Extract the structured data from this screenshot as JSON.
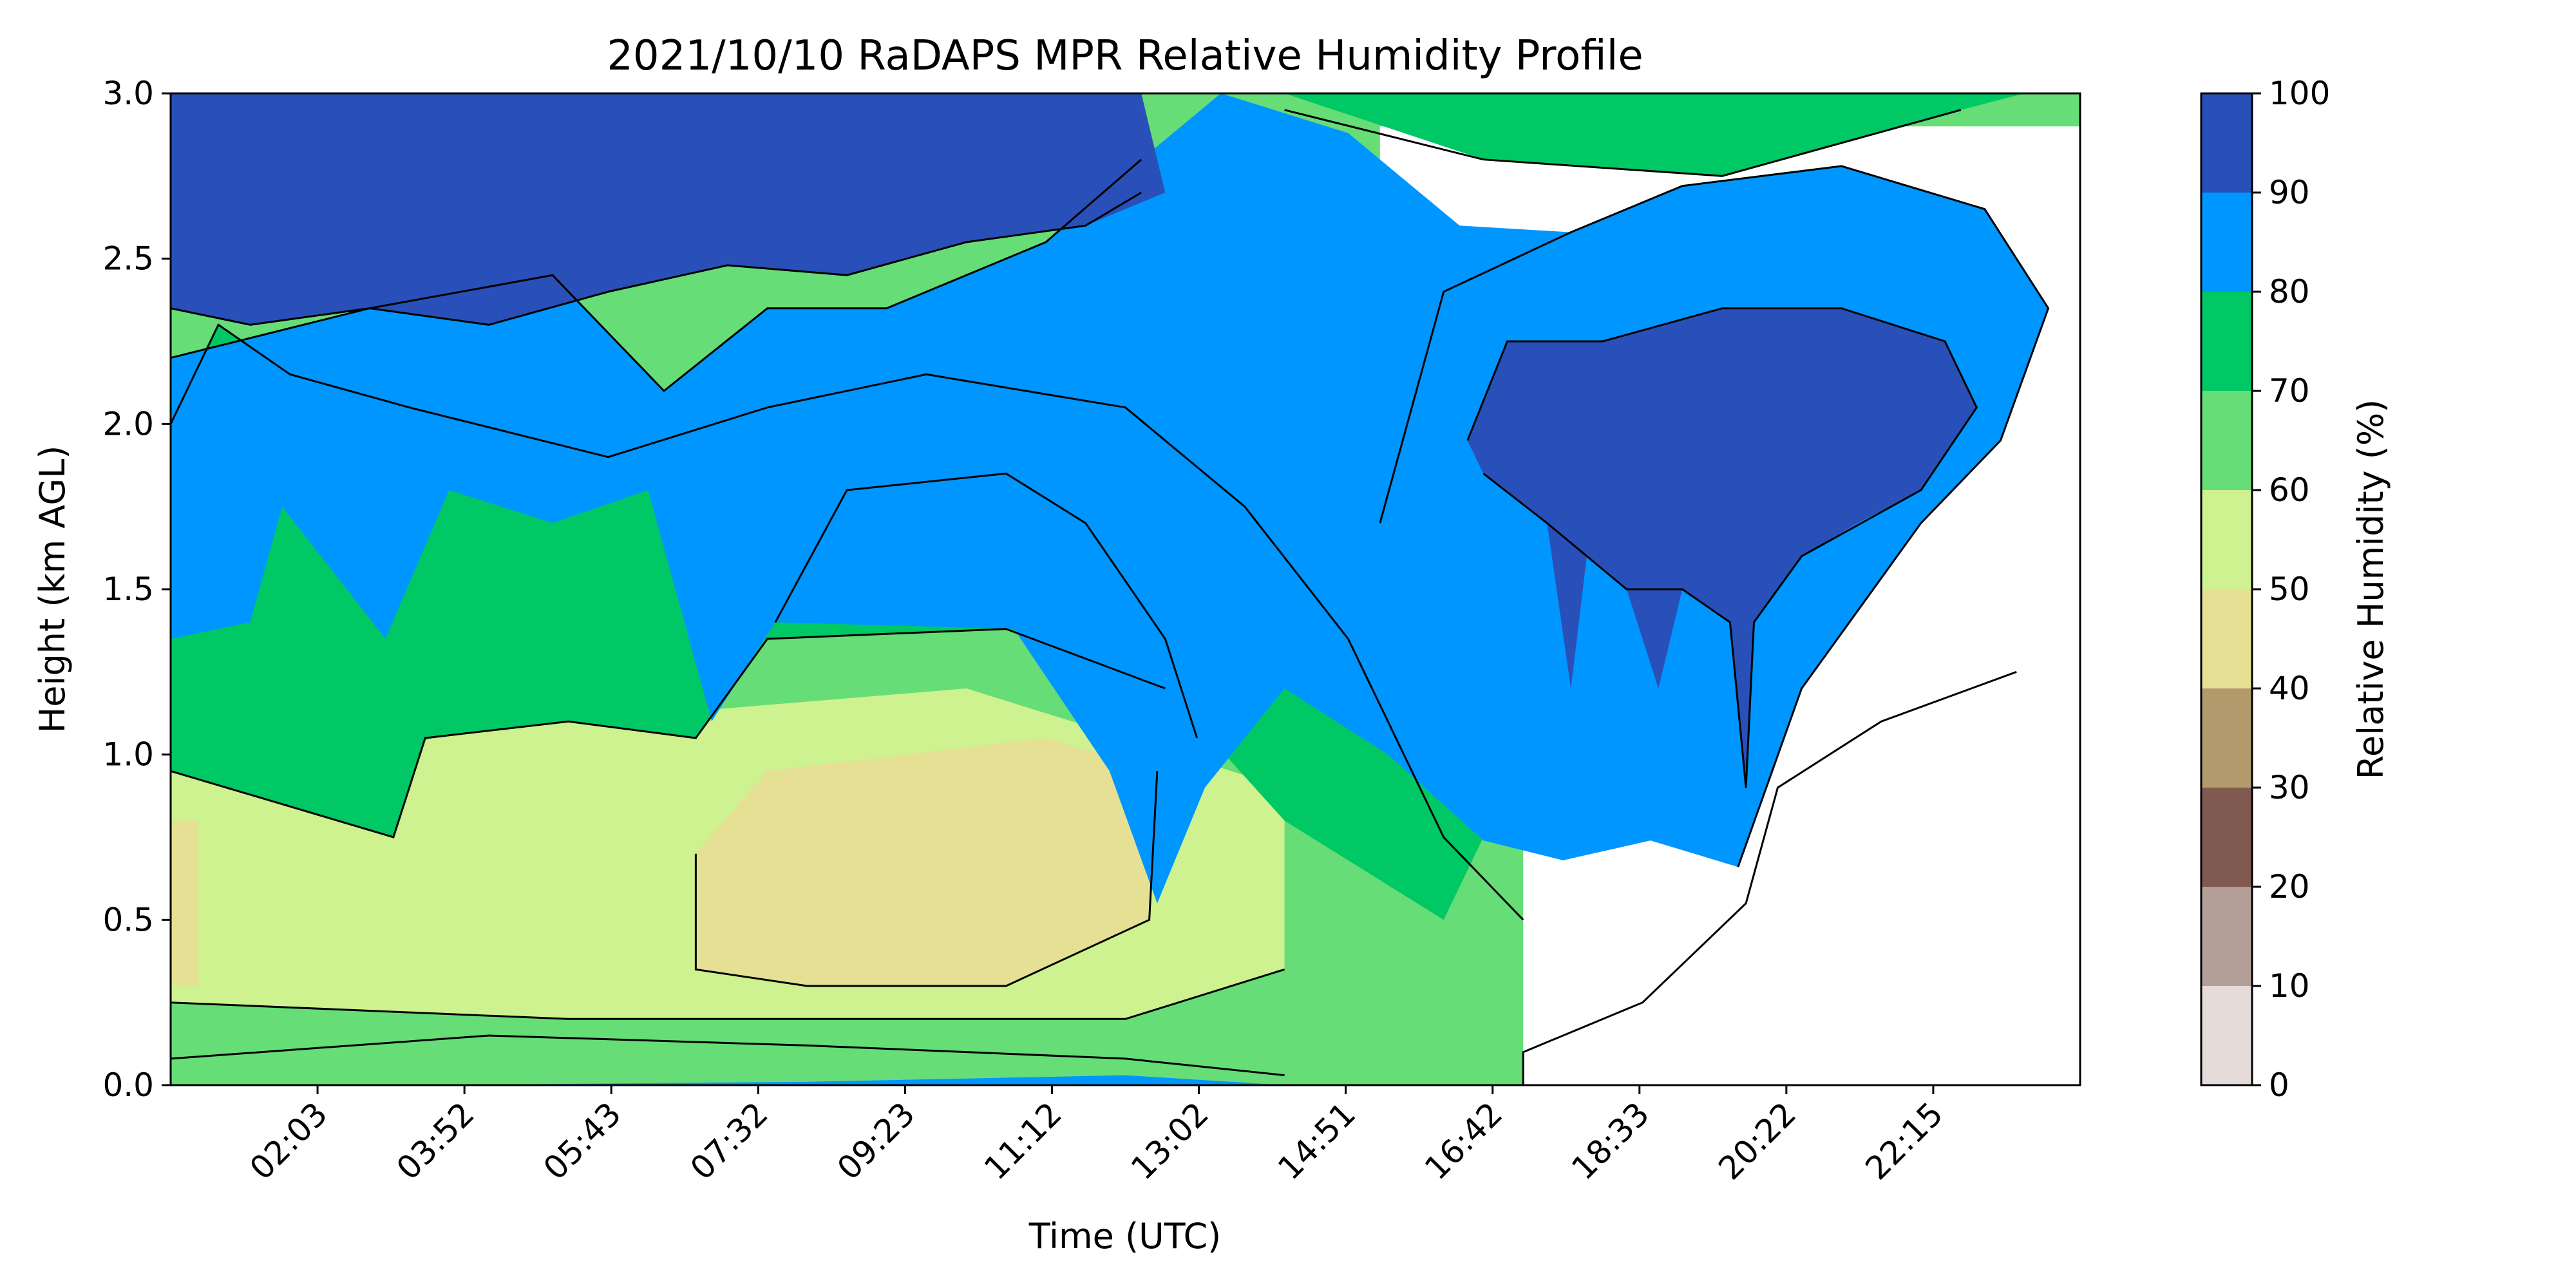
{
  "chart_data": {
    "type": "heatmap",
    "title": "2021/10/10 RaDAPS MPR Relative Humidity Profile",
    "xlabel": "Time (UTC)",
    "ylabel": "Height (km AGL)",
    "x_ticks": [
      "02:03",
      "03:52",
      "05:43",
      "07:32",
      "09:23",
      "11:12",
      "13:02",
      "14:51",
      "16:42",
      "18:33",
      "20:22",
      "22:15"
    ],
    "y_ticks": [
      "0.0",
      "0.5",
      "1.0",
      "1.5",
      "2.0",
      "2.5",
      "3.0"
    ],
    "ylim": [
      0,
      3
    ],
    "colorbar": {
      "label": "Relative Humidity (%)",
      "ticks": [
        "0",
        "10",
        "20",
        "30",
        "40",
        "50",
        "60",
        "70",
        "80",
        "90",
        "100"
      ],
      "levels": [
        {
          "range": [
            0,
            10
          ],
          "color": "#e5dcda"
        },
        {
          "range": [
            10,
            20
          ],
          "color": "#b39e98"
        },
        {
          "range": [
            20,
            30
          ],
          "color": "#805a50"
        },
        {
          "range": [
            30,
            40
          ],
          "color": "#b39a6d"
        },
        {
          "range": [
            40,
            50
          ],
          "color": "#e5e093"
        },
        {
          "range": [
            50,
            60
          ],
          "color": "#cdf28f"
        },
        {
          "range": [
            60,
            70
          ],
          "color": "#66dd77"
        },
        {
          "range": [
            70,
            80
          ],
          "color": "#00c864"
        },
        {
          "range": [
            80,
            90
          ],
          "color": "#0096ff"
        },
        {
          "range": [
            90,
            100
          ],
          "color": "#2850b8"
        }
      ]
    },
    "regions": [
      {
        "name": "green-dry-band",
        "color": "#66dd77",
        "points": [
          [
            0.0,
            0.0
          ],
          [
            24.0,
            0.0
          ],
          [
            24.0,
            3.0
          ],
          [
            0.0,
            3.0
          ]
        ]
      },
      {
        "name": "white-gap-upper",
        "color": "#ffffff",
        "points": [
          [
            15.2,
            2.9
          ],
          [
            24.0,
            2.9
          ],
          [
            24.0,
            0.0
          ],
          [
            17.0,
            0.0
          ],
          [
            17.0,
            1.0
          ],
          [
            15.2,
            1.7
          ]
        ]
      },
      {
        "name": "pale-midday",
        "color": "#cdf28f",
        "points": [
          [
            0.0,
            0.25
          ],
          [
            5.0,
            0.2
          ],
          [
            12.0,
            0.2
          ],
          [
            14.0,
            0.35
          ],
          [
            14.0,
            0.9
          ],
          [
            10.0,
            1.2
          ],
          [
            5.0,
            1.1
          ],
          [
            0.0,
            0.95
          ]
        ]
      },
      {
        "name": "tan-core",
        "color": "#e5e093",
        "points": [
          [
            6.6,
            0.35
          ],
          [
            8.0,
            0.3
          ],
          [
            10.5,
            0.3
          ],
          [
            12.3,
            0.5
          ],
          [
            12.4,
            0.95
          ],
          [
            11.0,
            1.05
          ],
          [
            7.5,
            0.95
          ],
          [
            6.6,
            0.7
          ]
        ]
      },
      {
        "name": "tan-left-edge",
        "color": "#e5e093",
        "points": [
          [
            0.0,
            0.3
          ],
          [
            0.35,
            0.3
          ],
          [
            0.35,
            0.8
          ],
          [
            0.0,
            0.8
          ]
        ]
      },
      {
        "name": "green-low-night",
        "color": "#00c864",
        "points": [
          [
            0.0,
            0.95
          ],
          [
            2.8,
            0.75
          ],
          [
            3.2,
            1.05
          ],
          [
            5.0,
            1.1
          ],
          [
            6.6,
            1.05
          ],
          [
            7.5,
            1.35
          ],
          [
            10.5,
            1.38
          ],
          [
            12.5,
            1.2
          ],
          [
            14.0,
            0.8
          ],
          [
            16.0,
            0.5
          ],
          [
            16.5,
            0.75
          ],
          [
            17.0,
            1.0
          ],
          [
            14.8,
            1.35
          ],
          [
            13.5,
            1.75
          ],
          [
            12.0,
            2.05
          ],
          [
            9.5,
            2.15
          ],
          [
            7.5,
            2.05
          ],
          [
            5.5,
            1.9
          ],
          [
            3.0,
            2.05
          ],
          [
            1.5,
            2.15
          ],
          [
            0.6,
            2.3
          ],
          [
            0.0,
            2.0
          ]
        ]
      },
      {
        "name": "blue-humid-layer",
        "color": "#0096ff",
        "points": [
          [
            0.0,
            1.35
          ],
          [
            1.0,
            1.4
          ],
          [
            1.4,
            1.75
          ],
          [
            2.7,
            1.35
          ],
          [
            3.5,
            1.8
          ],
          [
            4.8,
            1.7
          ],
          [
            6.0,
            1.8
          ],
          [
            6.8,
            1.1
          ],
          [
            7.6,
            1.4
          ],
          [
            10.6,
            1.38
          ],
          [
            11.8,
            0.95
          ],
          [
            12.4,
            0.55
          ],
          [
            13.0,
            0.9
          ],
          [
            14.0,
            1.2
          ],
          [
            15.3,
            1.0
          ],
          [
            16.5,
            0.74
          ],
          [
            17.5,
            0.68
          ],
          [
            18.6,
            0.74
          ],
          [
            19.7,
            0.66
          ],
          [
            20.5,
            1.2
          ],
          [
            22.0,
            1.7
          ],
          [
            23.0,
            1.95
          ],
          [
            23.6,
            2.35
          ],
          [
            22.8,
            2.65
          ],
          [
            21.0,
            2.78
          ],
          [
            19.0,
            2.72
          ],
          [
            17.6,
            2.58
          ],
          [
            16.2,
            2.6
          ],
          [
            14.8,
            2.88
          ],
          [
            13.2,
            3.0
          ],
          [
            12.2,
            2.8
          ],
          [
            11.0,
            2.55
          ],
          [
            9.0,
            2.35
          ],
          [
            7.5,
            2.35
          ],
          [
            6.2,
            2.1
          ],
          [
            4.8,
            2.45
          ],
          [
            2.5,
            2.35
          ],
          [
            0.0,
            2.2
          ]
        ]
      },
      {
        "name": "green-upper-evening",
        "color": "#00c864",
        "points": [
          [
            14.0,
            3.0
          ],
          [
            16.5,
            2.8
          ],
          [
            19.5,
            2.75
          ],
          [
            22.5,
            2.95
          ],
          [
            23.3,
            3.0
          ]
        ]
      },
      {
        "name": "navy-saturated-top",
        "color": "#2850b8",
        "points": [
          [
            0.0,
            3.0
          ],
          [
            12.2,
            3.0
          ],
          [
            12.5,
            2.7
          ],
          [
            11.5,
            2.6
          ],
          [
            10.0,
            2.55
          ],
          [
            8.5,
            2.45
          ],
          [
            7.0,
            2.48
          ],
          [
            5.5,
            2.4
          ],
          [
            4.0,
            2.3
          ],
          [
            2.5,
            2.35
          ],
          [
            1.0,
            2.3
          ],
          [
            0.0,
            2.35
          ]
        ]
      },
      {
        "name": "navy-evening-cloud",
        "color": "#2850b8",
        "points": [
          [
            16.3,
            1.95
          ],
          [
            16.8,
            2.25
          ],
          [
            18.0,
            2.25
          ],
          [
            19.5,
            2.35
          ],
          [
            21.0,
            2.35
          ],
          [
            22.3,
            2.25
          ],
          [
            22.7,
            2.05
          ],
          [
            22.0,
            1.8
          ],
          [
            21.2,
            1.7
          ],
          [
            20.5,
            1.6
          ],
          [
            19.9,
            1.4
          ],
          [
            19.8,
            0.9
          ],
          [
            19.6,
            1.4
          ],
          [
            19.0,
            1.5
          ],
          [
            18.7,
            1.2
          ],
          [
            18.3,
            1.5
          ],
          [
            17.8,
            1.6
          ],
          [
            17.6,
            1.2
          ],
          [
            17.3,
            1.7
          ],
          [
            16.5,
            1.85
          ]
        ]
      },
      {
        "name": "blue-surface-band",
        "color": "#0096ff",
        "points": [
          [
            3.0,
            0.0
          ],
          [
            8.0,
            0.01
          ],
          [
            12.0,
            0.03
          ],
          [
            14.0,
            0.0
          ]
        ]
      }
    ],
    "contours": [
      {
        "name": "rh-90-contour-top",
        "points": [
          [
            0.0,
            2.35
          ],
          [
            1.0,
            2.3
          ],
          [
            2.5,
            2.35
          ],
          [
            4.0,
            2.3
          ],
          [
            5.5,
            2.4
          ],
          [
            7.0,
            2.48
          ],
          [
            8.5,
            2.45
          ],
          [
            10.0,
            2.55
          ],
          [
            11.5,
            2.6
          ],
          [
            12.2,
            2.7
          ]
        ]
      },
      {
        "name": "rh-80-contour-upper",
        "points": [
          [
            0.0,
            2.2
          ],
          [
            2.5,
            2.35
          ],
          [
            4.8,
            2.45
          ],
          [
            6.2,
            2.1
          ],
          [
            7.5,
            2.35
          ],
          [
            9.0,
            2.35
          ],
          [
            11.0,
            2.55
          ],
          [
            12.2,
            2.8
          ]
        ]
      },
      {
        "name": "rh-70-contour-mid",
        "points": [
          [
            0.0,
            2.0
          ],
          [
            0.6,
            2.3
          ],
          [
            1.5,
            2.15
          ],
          [
            3.0,
            2.05
          ],
          [
            5.5,
            1.9
          ],
          [
            7.5,
            2.05
          ],
          [
            9.5,
            2.15
          ],
          [
            12.0,
            2.05
          ],
          [
            13.5,
            1.75
          ],
          [
            14.8,
            1.35
          ],
          [
            16.0,
            0.75
          ],
          [
            17.0,
            0.5
          ]
        ]
      },
      {
        "name": "rh-80-contour-core",
        "points": [
          [
            7.6,
            1.4
          ],
          [
            8.5,
            1.8
          ],
          [
            10.5,
            1.85
          ],
          [
            11.5,
            1.7
          ],
          [
            12.5,
            1.35
          ],
          [
            12.9,
            1.05
          ]
        ]
      },
      {
        "name": "rh-60-contour",
        "points": [
          [
            0.0,
            0.95
          ],
          [
            2.8,
            0.75
          ],
          [
            3.2,
            1.05
          ],
          [
            5.0,
            1.1
          ],
          [
            6.6,
            1.05
          ],
          [
            7.5,
            1.35
          ],
          [
            10.5,
            1.38
          ],
          [
            12.5,
            1.2
          ]
        ]
      },
      {
        "name": "rh-50-contour",
        "points": [
          [
            6.6,
            0.7
          ],
          [
            6.6,
            0.35
          ],
          [
            8.0,
            0.3
          ],
          [
            10.5,
            0.3
          ],
          [
            12.3,
            0.5
          ],
          [
            12.4,
            0.95
          ]
        ]
      },
      {
        "name": "rh-60-low-contour",
        "points": [
          [
            0.0,
            0.25
          ],
          [
            5.0,
            0.2
          ],
          [
            12.0,
            0.2
          ],
          [
            14.0,
            0.35
          ]
        ]
      },
      {
        "name": "rh-70-surface-contour",
        "points": [
          [
            0.0,
            0.08
          ],
          [
            4.0,
            0.15
          ],
          [
            8.0,
            0.12
          ],
          [
            12.0,
            0.08
          ],
          [
            14.0,
            0.03
          ]
        ]
      },
      {
        "name": "rh-90-evening-contour",
        "points": [
          [
            16.3,
            1.95
          ],
          [
            16.8,
            2.25
          ],
          [
            18.0,
            2.25
          ],
          [
            19.5,
            2.35
          ],
          [
            21.0,
            2.35
          ],
          [
            22.3,
            2.25
          ],
          [
            22.7,
            2.05
          ],
          [
            22.0,
            1.8
          ],
          [
            20.5,
            1.6
          ],
          [
            19.9,
            1.4
          ],
          [
            19.8,
            0.9
          ],
          [
            19.6,
            1.4
          ],
          [
            19.0,
            1.5
          ],
          [
            18.3,
            1.5
          ],
          [
            17.3,
            1.7
          ],
          [
            16.5,
            1.85
          ]
        ]
      },
      {
        "name": "rh-80-evening-contour",
        "points": [
          [
            15.2,
            1.7
          ],
          [
            16.0,
            2.4
          ],
          [
            17.6,
            2.58
          ],
          [
            19.0,
            2.72
          ],
          [
            21.0,
            2.78
          ],
          [
            22.8,
            2.65
          ],
          [
            23.6,
            2.35
          ],
          [
            23.0,
            1.95
          ],
          [
            22.0,
            1.7
          ],
          [
            20.5,
            1.2
          ],
          [
            19.7,
            0.66
          ]
        ]
      },
      {
        "name": "rh-60-evening-contour",
        "points": [
          [
            17.0,
            0.0
          ],
          [
            17.0,
            0.1
          ],
          [
            18.5,
            0.25
          ],
          [
            19.8,
            0.55
          ],
          [
            20.2,
            0.9
          ],
          [
            21.5,
            1.1
          ],
          [
            23.2,
            1.25
          ]
        ]
      },
      {
        "name": "rh-70-upper-right-contour",
        "points": [
          [
            14.0,
            2.95
          ],
          [
            16.5,
            2.8
          ],
          [
            19.5,
            2.75
          ],
          [
            22.5,
            2.95
          ]
        ]
      }
    ]
  }
}
